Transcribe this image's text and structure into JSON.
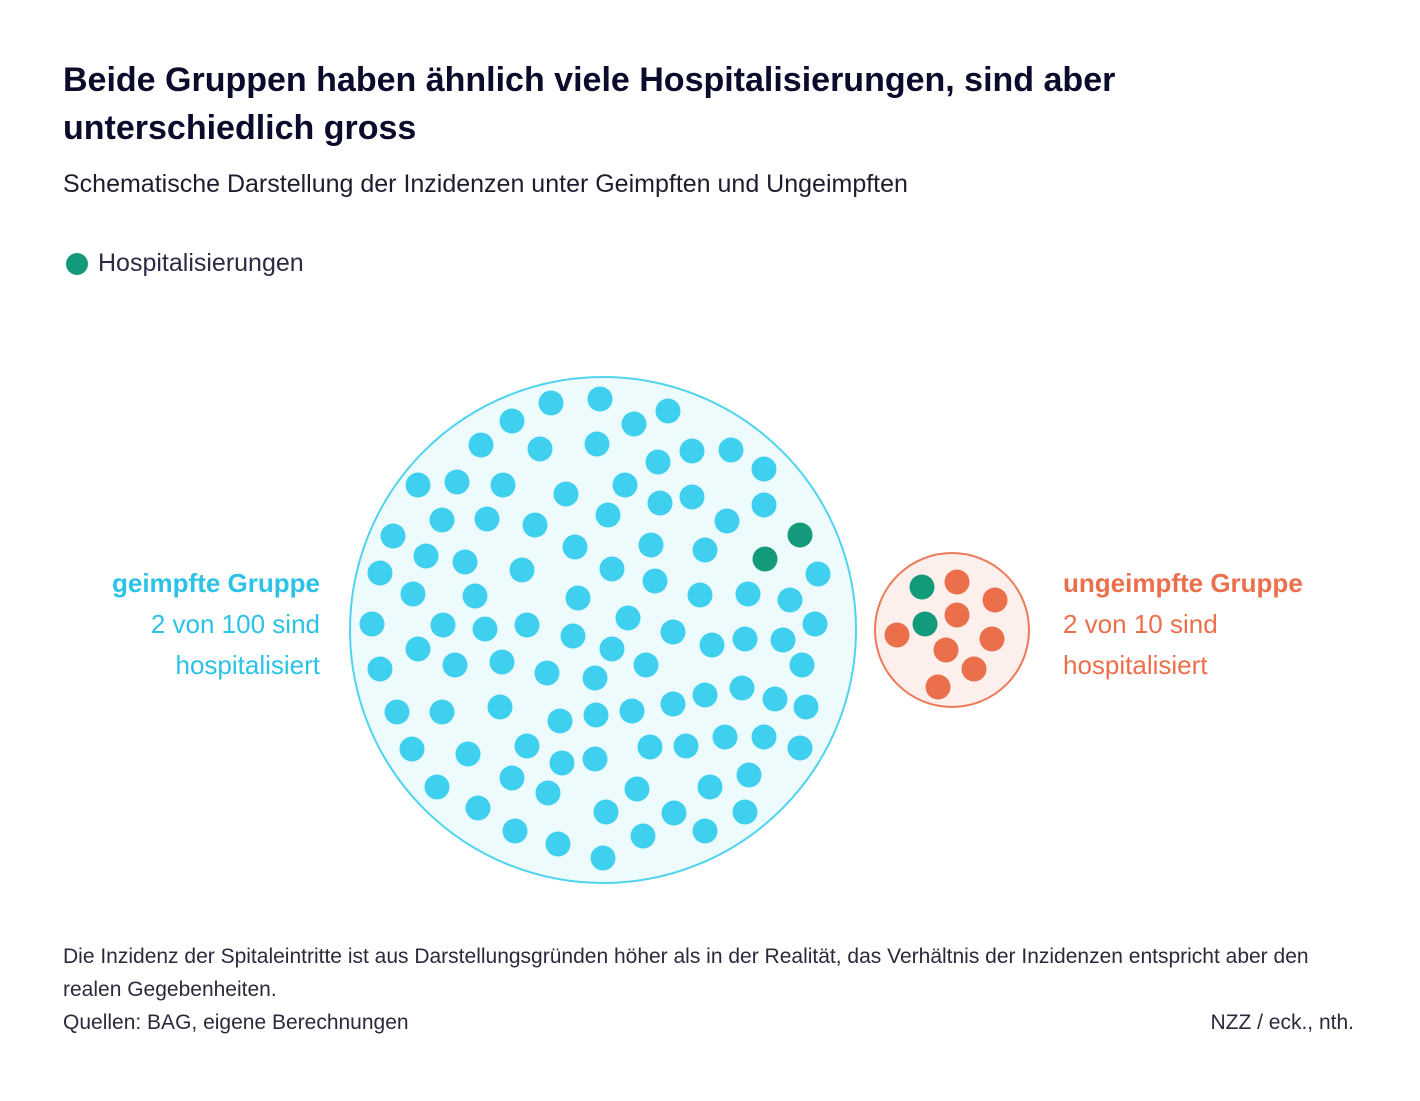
{
  "header": {
    "title": "Beide Gruppen haben ähnlich viele Hospitalisierungen, sind aber unterschiedlich gross",
    "subtitle": "Schematische Darstellung der Inzidenzen unter Geimpften und Ungeimpften"
  },
  "legend": {
    "label": "Hospitalisierungen",
    "color": "#129a7a"
  },
  "colors": {
    "vaccinated_dot": "#3fd0f0",
    "vaccinated_fill": "#eefbfd",
    "vaccinated_stroke": "#50d4ee",
    "vaccinated_text": "#2cc2e8",
    "unvaccinated_dot": "#ec6f4c",
    "unvaccinated_fill": "#fdf0ec",
    "unvaccinated_stroke": "#ec7a5a",
    "unvaccinated_text": "#ec6f4c",
    "hospitalized_dot": "#129a7a"
  },
  "chart_data": {
    "type": "dot-circle",
    "title": "Beide Gruppen haben ähnlich viele Hospitalisierungen, sind aber unterschiedlich gross",
    "subtitle": "Schematische Darstellung der Inzidenzen unter Geimpften und Ungeimpften",
    "groups": [
      {
        "key": "vaccinated",
        "name": "geimpfte Gruppe",
        "detail_line1": "2 von 100 sind",
        "detail_line2": "hospitalisiert",
        "total": 100,
        "hospitalized": 2
      },
      {
        "key": "unvaccinated",
        "name": "ungeimpfte Gruppe",
        "detail_line1": "2 von 10 sind",
        "detail_line2": "hospitalisiert",
        "total": 10,
        "hospitalized": 2
      }
    ]
  },
  "footer": {
    "note": "Die Inzidenz der Spitaleintritte ist aus Darstellungsgründen höher als in der Realität, das Verhältnis der Inzidenzen entspricht aber den realen Gegebenheiten.",
    "sources": "Quellen: BAG, eigene Berechnungen",
    "credit": "NZZ / eck., nth."
  }
}
